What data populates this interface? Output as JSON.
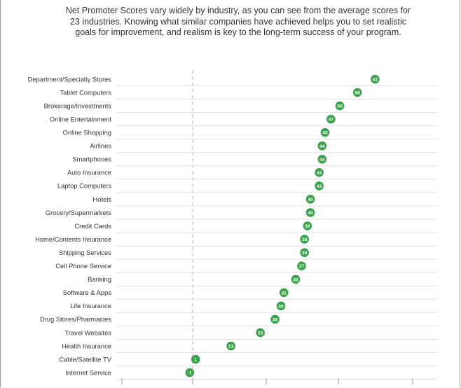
{
  "intro": {
    "lines": [
      "Net Promoter Scores vary widely by industry, as you can see from the average scores for",
      "23 industries. Knowing what similar companies have achieved helps you to set realistic",
      "goals for improvement, and realism is key to the long-term success of your program."
    ]
  },
  "colors": {
    "dot": "#3aa24a",
    "dot_text": "#ffffff",
    "grid": "#e0e0e0",
    "zero_line": "#b5b5b5",
    "label": "#333333"
  },
  "chart_data": {
    "type": "scatter",
    "title": "",
    "xlabel": "",
    "ylabel": "",
    "xlim": [
      -2,
      67
    ],
    "zero_reference": 0,
    "categories": [
      "Department/Specialty Stores",
      "Tablet Computers",
      "Brokerage/Investments",
      "Online Entertainment",
      "Online Shopping",
      "Airlines",
      "Smartphones",
      "Auto Insurance",
      "Laptop Computers",
      "Hotels",
      "Grocery/Supermarkets",
      "Credit Cards",
      "Home/Contents Insurance",
      "Shipping Services",
      "Cell Phone Service",
      "Banking",
      "Software & Apps",
      "Life Insurance",
      "Drug Stores/Pharmacies",
      "Travel Websites",
      "Health Insurance",
      "Cable/Satellite TV",
      "Internet Service"
    ],
    "values": [
      62,
      56,
      50,
      47,
      45,
      44,
      44,
      43,
      43,
      40,
      40,
      39,
      38,
      38,
      37,
      35,
      31,
      30,
      28,
      23,
      13,
      1,
      -1
    ],
    "data_labels": [
      "62",
      "56",
      "50",
      "47",
      "45",
      "44",
      "44",
      "43",
      "43",
      "40",
      "40",
      "39",
      "38",
      "38",
      "37",
      "35",
      "31",
      "30",
      "28",
      "23",
      "13",
      "1",
      "-1"
    ]
  }
}
